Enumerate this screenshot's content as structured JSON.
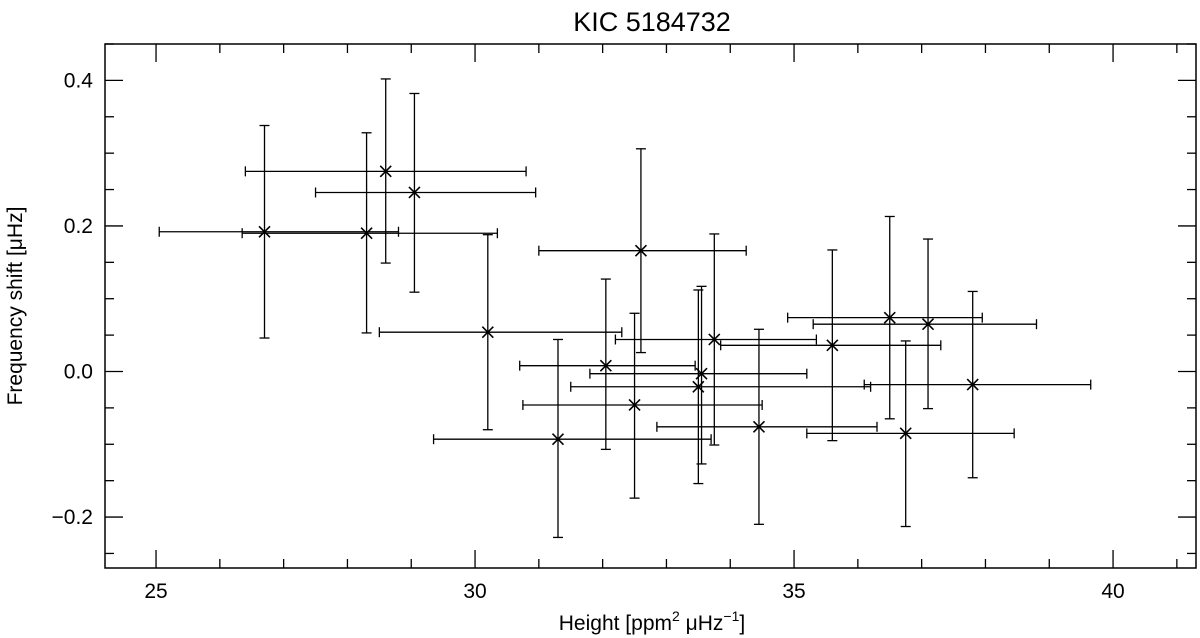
{
  "chart_data": {
    "type": "scatter",
    "title": "KIC 5184732",
    "xlabel": {
      "pre": "Height [ppm",
      "sup1": "2",
      "mid": " μHz",
      "sup2": "−1",
      "post": "]"
    },
    "ylabel": "Frequency shift [μHz]",
    "xlim": [
      24.2,
      41.3
    ],
    "ylim": [
      -0.27,
      0.45
    ],
    "xticks": [
      25,
      30,
      35,
      40
    ],
    "xtick_labels": [
      "25",
      "30",
      "35",
      "40"
    ],
    "yticks": [
      -0.2,
      0.0,
      0.2,
      0.4
    ],
    "ytick_labels": [
      "−0.2",
      "0.0",
      "0.2",
      "0.4"
    ],
    "x_minor_step": 1,
    "y_minor_step": 0.05,
    "grid": false,
    "marker": "x",
    "points": [
      {
        "x": 26.7,
        "y": 0.192,
        "xerr_lo": 25.05,
        "xerr_hi": 28.8,
        "yerr_lo": 0.046,
        "yerr_hi": 0.338
      },
      {
        "x": 28.3,
        "y": 0.19,
        "xerr_lo": 26.35,
        "xerr_hi": 30.35,
        "yerr_lo": 0.053,
        "yerr_hi": 0.328
      },
      {
        "x": 28.6,
        "y": 0.275,
        "xerr_lo": 26.4,
        "xerr_hi": 30.8,
        "yerr_lo": 0.149,
        "yerr_hi": 0.402
      },
      {
        "x": 29.05,
        "y": 0.246,
        "xerr_lo": 27.5,
        "xerr_hi": 30.95,
        "yerr_lo": 0.109,
        "yerr_hi": 0.382
      },
      {
        "x": 30.2,
        "y": 0.054,
        "xerr_lo": 28.5,
        "xerr_hi": 32.3,
        "yerr_lo": -0.08,
        "yerr_hi": 0.188
      },
      {
        "x": 31.3,
        "y": -0.093,
        "xerr_lo": 29.35,
        "xerr_hi": 33.7,
        "yerr_lo": -0.228,
        "yerr_hi": 0.044
      },
      {
        "x": 32.05,
        "y": 0.008,
        "xerr_lo": 30.7,
        "xerr_hi": 33.45,
        "yerr_lo": -0.107,
        "yerr_hi": 0.127
      },
      {
        "x": 32.5,
        "y": -0.046,
        "xerr_lo": 30.75,
        "xerr_hi": 34.5,
        "yerr_lo": -0.174,
        "yerr_hi": 0.08
      },
      {
        "x": 32.6,
        "y": 0.166,
        "xerr_lo": 31.0,
        "xerr_hi": 34.25,
        "yerr_lo": 0.026,
        "yerr_hi": 0.306
      },
      {
        "x": 33.5,
        "y": -0.021,
        "xerr_lo": 31.5,
        "xerr_hi": 36.2,
        "yerr_lo": -0.154,
        "yerr_hi": 0.112
      },
      {
        "x": 33.55,
        "y": -0.003,
        "xerr_lo": 31.8,
        "xerr_hi": 35.2,
        "yerr_lo": -0.127,
        "yerr_hi": 0.117
      },
      {
        "x": 33.75,
        "y": 0.044,
        "xerr_lo": 32.2,
        "xerr_hi": 35.35,
        "yerr_lo": -0.101,
        "yerr_hi": 0.189
      },
      {
        "x": 34.45,
        "y": -0.076,
        "xerr_lo": 32.85,
        "xerr_hi": 36.3,
        "yerr_lo": -0.21,
        "yerr_hi": 0.058
      },
      {
        "x": 35.6,
        "y": 0.036,
        "xerr_lo": 33.85,
        "xerr_hi": 37.3,
        "yerr_lo": -0.095,
        "yerr_hi": 0.167
      },
      {
        "x": 36.5,
        "y": 0.074,
        "xerr_lo": 34.9,
        "xerr_hi": 37.95,
        "yerr_lo": -0.065,
        "yerr_hi": 0.213
      },
      {
        "x": 36.75,
        "y": -0.085,
        "xerr_lo": 35.2,
        "xerr_hi": 38.45,
        "yerr_lo": -0.213,
        "yerr_hi": 0.042
      },
      {
        "x": 37.1,
        "y": 0.065,
        "xerr_lo": 35.3,
        "xerr_hi": 38.8,
        "yerr_lo": -0.051,
        "yerr_hi": 0.182
      },
      {
        "x": 37.8,
        "y": -0.018,
        "xerr_lo": 36.1,
        "xerr_hi": 39.65,
        "yerr_lo": -0.146,
        "yerr_hi": 0.11
      }
    ]
  }
}
